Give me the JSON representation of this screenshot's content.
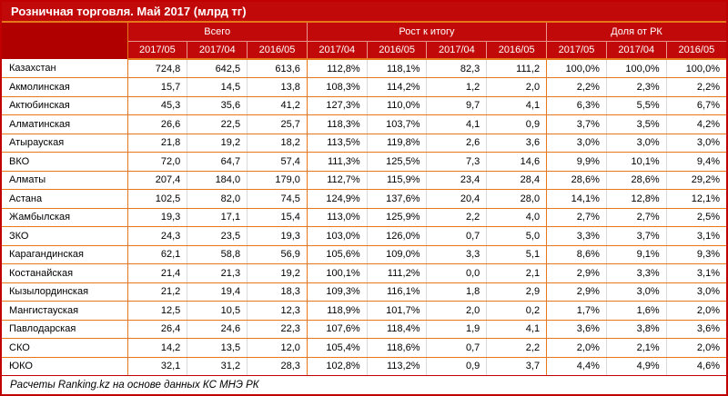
{
  "title": "Розничная торговля. Май 2017 (млрд тг)",
  "footer_note": "Расчеты Ranking.kz на основе данных КС МНЭ РК",
  "colors": {
    "header_bg": "#C20909",
    "corner_bg": "#B00000",
    "outer_border": "#C00000",
    "grid_orange": "#E8761B",
    "grid_light_gray": "#D9D9D9",
    "header_separator": "#E9948C",
    "header_text": "#FFFFFF",
    "cell_text": "#000000"
  },
  "chart_data": {
    "type": "table",
    "title": "Розничная торговля. Май 2017 (млрд тг)",
    "column_groups": [
      {
        "label": "Всего",
        "span": 3
      },
      {
        "label": "Рост к итогу",
        "span": 4
      },
      {
        "label": "Доля от РК",
        "span": 3
      }
    ],
    "sub_columns": [
      "2017/05",
      "2017/04",
      "2016/05",
      "2017/04",
      "2016/05",
      "2017/04",
      "2016/05",
      "2017/05",
      "2017/04",
      "2016/05"
    ],
    "rows": [
      {
        "region": "Казахстан",
        "values": [
          "724,8",
          "642,5",
          "613,6",
          "112,8%",
          "118,1%",
          "82,3",
          "111,2",
          "100,0%",
          "100,0%",
          "100,0%"
        ]
      },
      {
        "region": "Акмолинская",
        "values": [
          "15,7",
          "14,5",
          "13,8",
          "108,3%",
          "114,2%",
          "1,2",
          "2,0",
          "2,2%",
          "2,3%",
          "2,2%"
        ]
      },
      {
        "region": "Актюбинская",
        "values": [
          "45,3",
          "35,6",
          "41,2",
          "127,3%",
          "110,0%",
          "9,7",
          "4,1",
          "6,3%",
          "5,5%",
          "6,7%"
        ]
      },
      {
        "region": "Алматинская",
        "values": [
          "26,6",
          "22,5",
          "25,7",
          "118,3%",
          "103,7%",
          "4,1",
          "0,9",
          "3,7%",
          "3,5%",
          "4,2%"
        ]
      },
      {
        "region": "Атырауская",
        "values": [
          "21,8",
          "19,2",
          "18,2",
          "113,5%",
          "119,8%",
          "2,6",
          "3,6",
          "3,0%",
          "3,0%",
          "3,0%"
        ]
      },
      {
        "region": "ВКО",
        "values": [
          "72,0",
          "64,7",
          "57,4",
          "111,3%",
          "125,5%",
          "7,3",
          "14,6",
          "9,9%",
          "10,1%",
          "9,4%"
        ]
      },
      {
        "region": "Алматы",
        "values": [
          "207,4",
          "184,0",
          "179,0",
          "112,7%",
          "115,9%",
          "23,4",
          "28,4",
          "28,6%",
          "28,6%",
          "29,2%"
        ]
      },
      {
        "region": "Астана",
        "values": [
          "102,5",
          "82,0",
          "74,5",
          "124,9%",
          "137,6%",
          "20,4",
          "28,0",
          "14,1%",
          "12,8%",
          "12,1%"
        ]
      },
      {
        "region": "Жамбылская",
        "values": [
          "19,3",
          "17,1",
          "15,4",
          "113,0%",
          "125,9%",
          "2,2",
          "4,0",
          "2,7%",
          "2,7%",
          "2,5%"
        ]
      },
      {
        "region": "ЗКО",
        "values": [
          "24,3",
          "23,5",
          "19,3",
          "103,0%",
          "126,0%",
          "0,7",
          "5,0",
          "3,3%",
          "3,7%",
          "3,1%"
        ]
      },
      {
        "region": "Карагандинская",
        "values": [
          "62,1",
          "58,8",
          "56,9",
          "105,6%",
          "109,0%",
          "3,3",
          "5,1",
          "8,6%",
          "9,1%",
          "9,3%"
        ]
      },
      {
        "region": "Костанайская",
        "values": [
          "21,4",
          "21,3",
          "19,2",
          "100,1%",
          "111,2%",
          "0,0",
          "2,1",
          "2,9%",
          "3,3%",
          "3,1%"
        ]
      },
      {
        "region": "Кызылординская",
        "values": [
          "21,2",
          "19,4",
          "18,3",
          "109,3%",
          "116,1%",
          "1,8",
          "2,9",
          "2,9%",
          "3,0%",
          "3,0%"
        ]
      },
      {
        "region": "Мангистауская",
        "values": [
          "12,5",
          "10,5",
          "12,3",
          "118,9%",
          "101,7%",
          "2,0",
          "0,2",
          "1,7%",
          "1,6%",
          "2,0%"
        ]
      },
      {
        "region": "Павлодарская",
        "values": [
          "26,4",
          "24,6",
          "22,3",
          "107,6%",
          "118,4%",
          "1,9",
          "4,1",
          "3,6%",
          "3,8%",
          "3,6%"
        ]
      },
      {
        "region": "СКО",
        "values": [
          "14,2",
          "13,5",
          "12,0",
          "105,4%",
          "118,6%",
          "0,7",
          "2,2",
          "2,0%",
          "2,1%",
          "2,0%"
        ]
      },
      {
        "region": "ЮКО",
        "values": [
          "32,1",
          "31,2",
          "28,3",
          "102,8%",
          "113,2%",
          "0,9",
          "3,7",
          "4,4%",
          "4,9%",
          "4,6%"
        ]
      }
    ]
  }
}
